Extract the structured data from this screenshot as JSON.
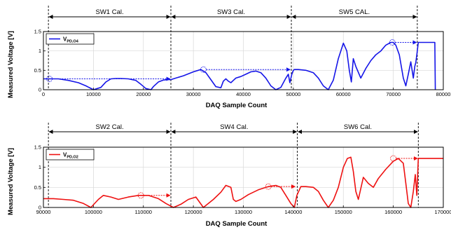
{
  "chart_data": [
    {
      "type": "line",
      "ylabel": "Measured Voltage [V]",
      "xlabel": "DAQ Sample Count",
      "xlim": [
        0,
        80000
      ],
      "ylim": [
        0,
        1.5
      ],
      "xticks": [
        0,
        10000,
        20000,
        30000,
        40000,
        50000,
        60000,
        70000,
        80000
      ],
      "yticks": [
        0,
        0.5,
        1,
        1.5
      ],
      "ytick_labels": [
        "0",
        "0.5",
        "1",
        "1.5"
      ],
      "grid": true,
      "legend_position": "top-left",
      "series": [
        {
          "name": "V",
          "name_sub": "PD,O4",
          "color": "#1515e8",
          "x": [
            0,
            600,
            1500,
            3000,
            5000,
            7000,
            8500,
            10000,
            11500,
            12500,
            13500,
            14500,
            15500,
            17000,
            18500,
            19500,
            20500,
            21500,
            22000,
            23000,
            24000,
            25000,
            25500,
            26500,
            28000,
            30000,
            31500,
            32500,
            33500,
            34500,
            35500,
            36000,
            36500,
            37000,
            37500,
            38000,
            38500,
            39500,
            40500,
            41500,
            42500,
            43500,
            44500,
            45500,
            46500,
            47500,
            48500,
            49000,
            49300,
            49700,
            50000,
            50200,
            51000,
            52500,
            54000,
            55000,
            56000,
            57000,
            58000,
            59000,
            60000,
            60700,
            61200,
            61600,
            62000,
            62500,
            63500,
            64500,
            65500,
            66500,
            67500,
            68500,
            69500,
            70000,
            70500,
            71200,
            72000,
            72500,
            73000,
            73500,
            74000,
            74300,
            74500,
            74700,
            75000,
            75500,
            76500,
            77500,
            78000,
            78300,
            78400
          ],
          "y": [
            0.28,
            0.28,
            0.28,
            0.28,
            0.24,
            0.18,
            0.1,
            0.0,
            0.06,
            0.2,
            0.28,
            0.29,
            0.29,
            0.28,
            0.24,
            0.14,
            0.03,
            0.0,
            0.08,
            0.2,
            0.25,
            0.26,
            0.26,
            0.3,
            0.36,
            0.46,
            0.52,
            0.44,
            0.26,
            0.08,
            0.05,
            0.22,
            0.28,
            0.22,
            0.18,
            0.24,
            0.3,
            0.34,
            0.4,
            0.46,
            0.48,
            0.44,
            0.3,
            0.1,
            0.0,
            0.06,
            0.3,
            0.4,
            0.18,
            0.4,
            0.5,
            0.52,
            0.52,
            0.5,
            0.44,
            0.3,
            0.1,
            0.0,
            0.25,
            0.8,
            1.2,
            1.0,
            0.5,
            0.2,
            0.8,
            0.6,
            0.3,
            0.55,
            0.75,
            0.9,
            1.0,
            1.15,
            1.22,
            1.22,
            1.15,
            0.9,
            0.3,
            0.1,
            0.4,
            0.72,
            0.3,
            0.6,
            0.7,
            0.9,
            1.22,
            1.22,
            1.22,
            1.22,
            1.22,
            1.22,
            0.0
          ]
        }
      ],
      "sections": [
        {
          "label": "SW1 Cal.",
          "x0": 1000,
          "x1": 25500
        },
        {
          "label": "SW3 Cal.",
          "x0": 25500,
          "x1": 49600
        },
        {
          "label": "SW5 CAL.",
          "x0": 49600,
          "x1": 74800
        }
      ],
      "markers": [
        {
          "x": 1200,
          "y": 0.28,
          "x_to": 25500
        },
        {
          "x": 32000,
          "y": 0.52,
          "x_to": 49500
        },
        {
          "x": 69800,
          "y": 1.22,
          "x_to": 74800
        }
      ]
    },
    {
      "type": "line",
      "ylabel": "Measured Voltage [V]",
      "xlabel": "DAQ Sample Count",
      "xlim": [
        90000,
        170000
      ],
      "ylim": [
        0,
        1.5
      ],
      "xticks": [
        90000,
        100000,
        110000,
        120000,
        130000,
        140000,
        150000,
        160000,
        170000
      ],
      "yticks": [
        0,
        0.5,
        1,
        1.5
      ],
      "ytick_labels": [
        "0",
        "0.5",
        "1",
        "1.5"
      ],
      "grid": true,
      "legend_position": "top-left",
      "series": [
        {
          "name": "V",
          "name_sub": "PD,O2",
          "color": "#ee1111",
          "x": [
            90000,
            92000,
            94000,
            96000,
            98000,
            99500,
            101000,
            102000,
            103500,
            105000,
            107000,
            109000,
            111000,
            113000,
            114500,
            116000,
            117500,
            119000,
            120500,
            122000,
            124000,
            125500,
            126500,
            127500,
            128000,
            128500,
            129500,
            131000,
            133000,
            135000,
            136500,
            137500,
            138500,
            139500,
            140200,
            140700,
            141500,
            142500,
            144000,
            145000,
            146000,
            147000,
            148000,
            149000,
            150000,
            150800,
            151500,
            152000,
            152500,
            153000,
            154000,
            155000,
            156000,
            157000,
            158500,
            160000,
            161000,
            162000,
            162500,
            163000,
            163500,
            164000,
            164400,
            164700,
            165000,
            166000,
            168000,
            170000
          ],
          "y": [
            0.22,
            0.22,
            0.2,
            0.18,
            0.1,
            0.0,
            0.2,
            0.3,
            0.26,
            0.2,
            0.26,
            0.3,
            0.3,
            0.22,
            0.1,
            0.0,
            0.08,
            0.2,
            0.26,
            0.0,
            0.2,
            0.38,
            0.55,
            0.5,
            0.2,
            0.15,
            0.2,
            0.32,
            0.44,
            0.52,
            0.55,
            0.5,
            0.3,
            0.1,
            0.0,
            0.3,
            0.52,
            0.52,
            0.5,
            0.4,
            0.18,
            0.0,
            0.18,
            0.5,
            1.0,
            1.22,
            1.25,
            0.9,
            0.4,
            0.2,
            0.75,
            0.6,
            0.5,
            0.72,
            0.95,
            1.15,
            1.22,
            1.1,
            0.6,
            0.1,
            0.0,
            0.4,
            0.82,
            0.3,
            1.22,
            1.22,
            1.22,
            1.22
          ]
        }
      ],
      "sections": [
        {
          "label": "SW2 Cal.",
          "x0": 91000,
          "x1": 115500
        },
        {
          "label": "SW4 Cal.",
          "x0": 115500,
          "x1": 140800
        },
        {
          "label": "SW6 Cal.",
          "x0": 140800,
          "x1": 165000
        }
      ],
      "markers": [
        {
          "x": 109500,
          "y": 0.3,
          "x_to": 115500
        },
        {
          "x": 135000,
          "y": 0.52,
          "x_to": 140500
        },
        {
          "x": 160000,
          "y": 1.22,
          "x_to": 165000
        }
      ]
    }
  ]
}
